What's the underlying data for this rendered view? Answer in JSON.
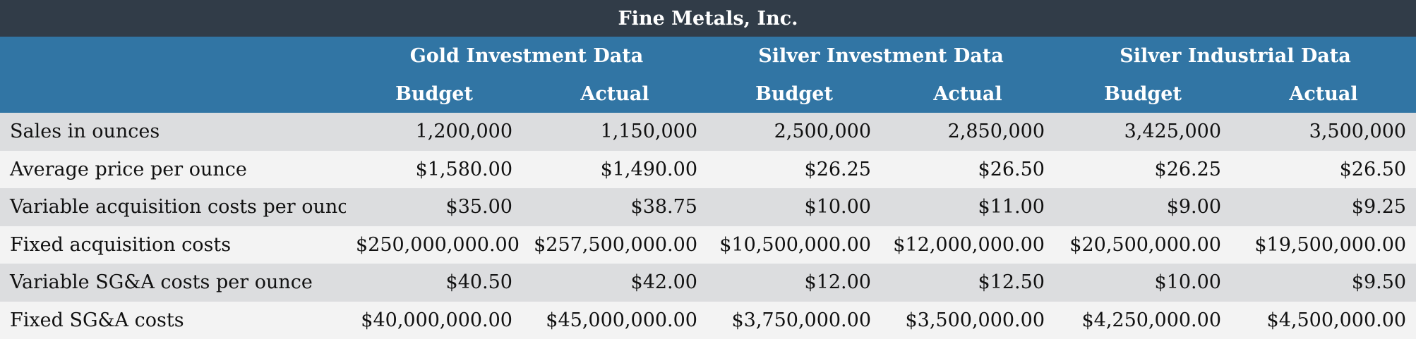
{
  "title": "Fine Metals, Inc.",
  "groups": [
    "Gold Investment Data",
    "Silver Investment Data",
    "Silver Industrial Data"
  ],
  "subheaders": [
    "Budget",
    "Actual",
    "Budget",
    "Actual",
    "Budget",
    "Actual"
  ],
  "rows": [
    {
      "label": "Sales in ounces",
      "values": [
        "1,200,000",
        "1,150,000",
        "2,500,000",
        "2,850,000",
        "3,425,000",
        "3,500,000"
      ]
    },
    {
      "label": "Average price per ounce",
      "values": [
        "$1,580.00",
        "$1,490.00",
        "$26.25",
        "$26.50",
        "$26.25",
        "$26.50"
      ]
    },
    {
      "label": "Variable acquisition costs per ounce",
      "values": [
        "$35.00",
        "$38.75",
        "$10.00",
        "$11.00",
        "$9.00",
        "$9.25"
      ]
    },
    {
      "label": "Fixed acquisition costs",
      "values": [
        "$250,000,000.00",
        "$257,500,000.00",
        "$10,500,000.00",
        "$12,000,000.00",
        "$20,500,000.00",
        "$19,500,000.00"
      ]
    },
    {
      "label": "Variable SG&A costs per ounce",
      "values": [
        "$40.50",
        "$42.00",
        "$12.00",
        "$12.50",
        "$10.00",
        "$9.50"
      ]
    },
    {
      "label": "Fixed SG&A costs",
      "values": [
        "$40,000,000.00",
        "$45,000,000.00",
        "$3,750,000.00",
        "$3,500,000.00",
        "$4,250,000.00",
        "$4,500,000.00"
      ]
    }
  ]
}
